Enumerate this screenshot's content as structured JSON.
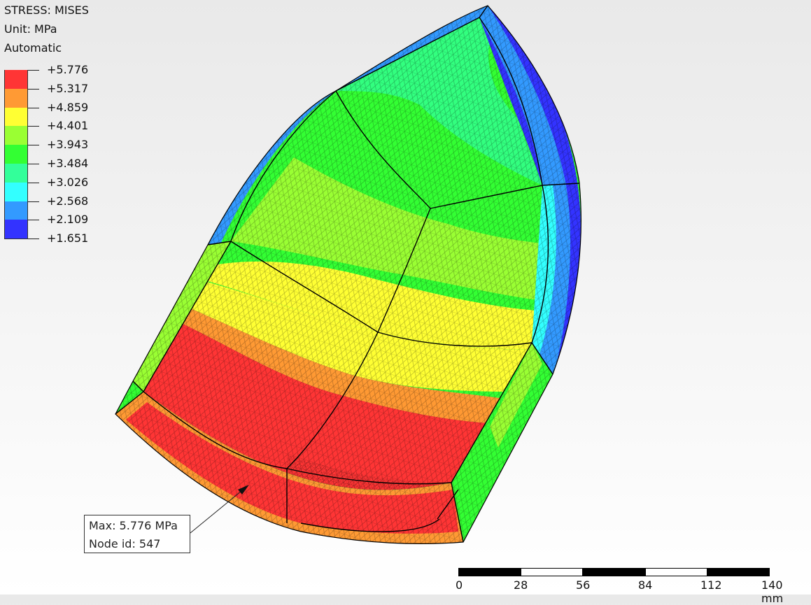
{
  "header": {
    "title": "STRESS: MISES",
    "unit": "Unit: MPa",
    "mode": "Automatic"
  },
  "legend": {
    "entries": [
      {
        "value": "+5.776",
        "color": "#ff3535"
      },
      {
        "value": "+5.317",
        "color": "#ff9a34"
      },
      {
        "value": "+4.859",
        "color": "#ffff33"
      },
      {
        "value": "+4.401",
        "color": "#9aff33"
      },
      {
        "value": "+3.943",
        "color": "#33ff33"
      },
      {
        "value": "+3.484",
        "color": "#33ff9a"
      },
      {
        "value": "+3.026",
        "color": "#33ffff"
      },
      {
        "value": "+2.568",
        "color": "#339aff"
      },
      {
        "value": "+2.109",
        "color": "#3333ff"
      },
      {
        "value": "+1.651",
        "color": null
      }
    ]
  },
  "callout": {
    "max": "Max: 5.776 MPa",
    "node": "Node id: 547"
  },
  "scalebar": {
    "labels": [
      "0",
      "28",
      "56",
      "84",
      "112",
      "140 mm"
    ]
  },
  "colors": {
    "red": "#ff3535",
    "orange": "#ff9a34",
    "yellow": "#ffff33",
    "yellowgreen": "#9aff33",
    "green": "#33ff33",
    "teal": "#33ff9a",
    "cyan": "#33ffff",
    "skyblue": "#339aff",
    "blue": "#3333ff"
  }
}
